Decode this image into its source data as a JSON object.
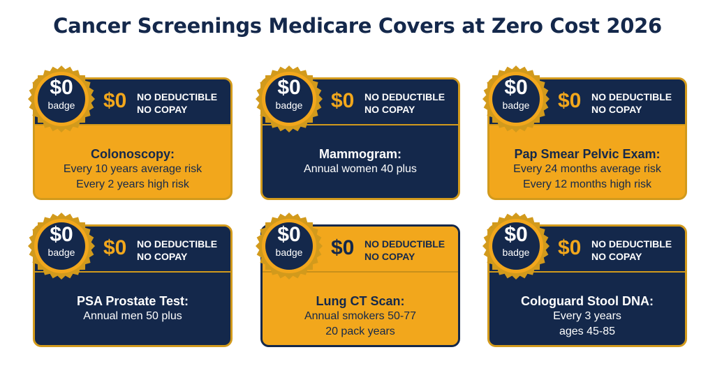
{
  "title": "Cancer Screenings Medicare Covers at Zero Cost 2026",
  "colors": {
    "navy": "#14284b",
    "gold": "#f2a71c",
    "gold_border": "#d29a1c"
  },
  "cards": [
    {
      "badge_value": "$0",
      "badge_label": "badge",
      "zero_text": "$0",
      "term_1": "NO DEDUCTIBLE",
      "term_2": "NO COPAY",
      "name": "Colonoscopy:",
      "line_1": "Every 10 years average risk",
      "line_2": "Every 2 years high risk"
    },
    {
      "badge_value": "$0",
      "badge_label": "badge",
      "zero_text": "$0",
      "term_1": "NO DEDUCTIBLE",
      "term_2": "NO COPAY",
      "name": "Mammogram:",
      "line_1": "Annual women 40 plus",
      "line_2": ""
    },
    {
      "badge_value": "$0",
      "badge_label": "badge",
      "zero_text": "$0",
      "term_1": "NO DEDUCTIBLE",
      "term_2": "NO COPAY",
      "name": "Pap Smear Pelvic Exam:",
      "line_1": "Every 24 months average risk",
      "line_2": "Every 12 months high risk"
    },
    {
      "badge_value": "$0",
      "badge_label": "badge",
      "zero_text": "$0",
      "term_1": "NO DEDUCTIBLE",
      "term_2": "NO COPAY",
      "name": "PSA Prostate Test:",
      "line_1": "Annual men 50 plus",
      "line_2": ""
    },
    {
      "badge_value": "$0",
      "badge_label": "badge",
      "zero_text": "$0",
      "term_1": "NO DEDUCTIBLE",
      "term_2": "NO COPAY",
      "name": "Lung CT Scan:",
      "line_1": "Annual smokers 50-77",
      "line_2": "20 pack years"
    },
    {
      "badge_value": "$0",
      "badge_label": "badge",
      "zero_text": "$0",
      "term_1": "NO DEDUCTIBLE",
      "term_2": "NO COPAY",
      "name": "Cologuard Stool DNA:",
      "line_1": "Every 3 years",
      "line_2": "ages 45-85"
    }
  ]
}
